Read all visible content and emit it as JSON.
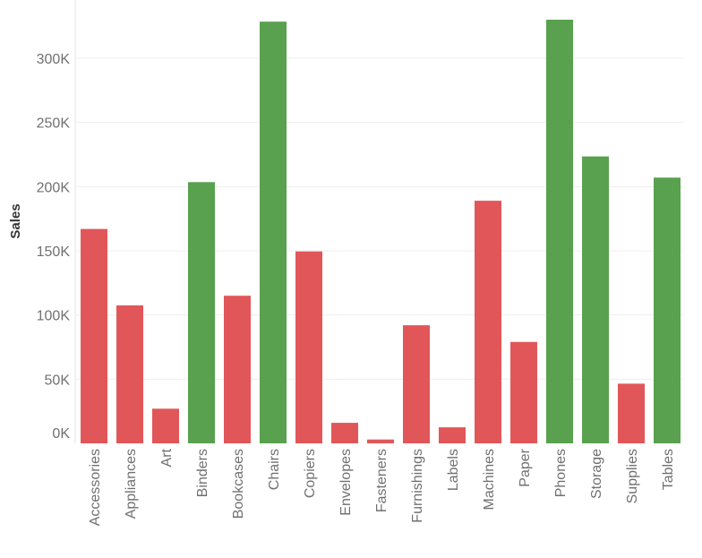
{
  "chart_data": {
    "type": "bar",
    "title": "",
    "xlabel": "",
    "ylabel": "Sales",
    "ylim": [
      0,
      330000
    ],
    "yticks": [
      0,
      50000,
      100000,
      150000,
      200000,
      250000,
      300000
    ],
    "ytick_labels": [
      "0K",
      "50K",
      "100K",
      "150K",
      "200K",
      "250K",
      "300K"
    ],
    "grid": "horizontal",
    "categories": [
      "Accessories",
      "Appliances",
      "Art",
      "Binders",
      "Bookcases",
      "Chairs",
      "Copiers",
      "Envelopes",
      "Fasteners",
      "Furnishings",
      "Labels",
      "Machines",
      "Paper",
      "Phones",
      "Storage",
      "Supplies",
      "Tables"
    ],
    "values": [
      167000,
      107500,
      27000,
      203500,
      115000,
      328500,
      149500,
      16000,
      3000,
      92000,
      12500,
      189000,
      79000,
      330000,
      223500,
      46500,
      207000
    ],
    "bar_color_groups": [
      "low",
      "low",
      "low",
      "high",
      "low",
      "high",
      "low",
      "low",
      "low",
      "low",
      "low",
      "low",
      "low",
      "high",
      "high",
      "low",
      "high"
    ],
    "colors": {
      "low": "#e15759",
      "high": "#59a14f"
    }
  }
}
